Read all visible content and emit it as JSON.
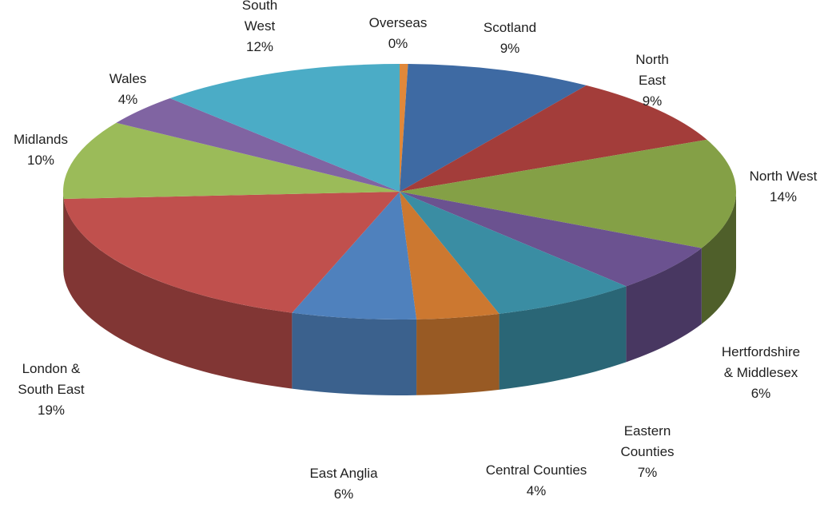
{
  "chart_data": {
    "type": "pie",
    "title": "",
    "style": "3d",
    "slices": [
      {
        "name": "Overseas",
        "value": 0.4,
        "label": [
          "Overseas",
          "0%"
        ],
        "color": "#e0883a"
      },
      {
        "name": "Scotland",
        "value": 9,
        "label": [
          "Scotland",
          "9%"
        ],
        "color": "#3e6aa3"
      },
      {
        "name": "North East",
        "value": 9,
        "label": [
          "North",
          "East",
          "9%"
        ],
        "color": "#a33d3a"
      },
      {
        "name": "North West",
        "value": 14,
        "label": [
          "North West",
          "14%"
        ],
        "color": "#84a046"
      },
      {
        "name": "Hertfordshire & Middlesex",
        "value": 6,
        "label": [
          "Hertfordshire",
          "& Middlesex",
          "6%"
        ],
        "color": "#6b5290"
      },
      {
        "name": "Eastern Counties",
        "value": 7,
        "label": [
          "Eastern",
          "Counties",
          "7%"
        ],
        "color": "#3a8da3"
      },
      {
        "name": "Central Counties",
        "value": 4,
        "label": [
          "Central Counties",
          "4%"
        ],
        "color": "#cc7830"
      },
      {
        "name": "East Anglia",
        "value": 6,
        "label": [
          "East Anglia",
          "6%"
        ],
        "color": "#4f81bd"
      },
      {
        "name": "London & South East",
        "value": 19,
        "label": [
          "London &",
          "South East",
          "19%"
        ],
        "color": "#c0504d"
      },
      {
        "name": "Midlands",
        "value": 10,
        "label": [
          "Midlands",
          "10%"
        ],
        "color": "#9bbb59"
      },
      {
        "name": "Wales",
        "value": 4,
        "label": [
          "Wales",
          "4%"
        ],
        "color": "#8064a2"
      },
      {
        "name": "South West",
        "value": 12,
        "label": [
          "South",
          "West",
          "12%"
        ],
        "color": "#4bacc6"
      }
    ]
  }
}
